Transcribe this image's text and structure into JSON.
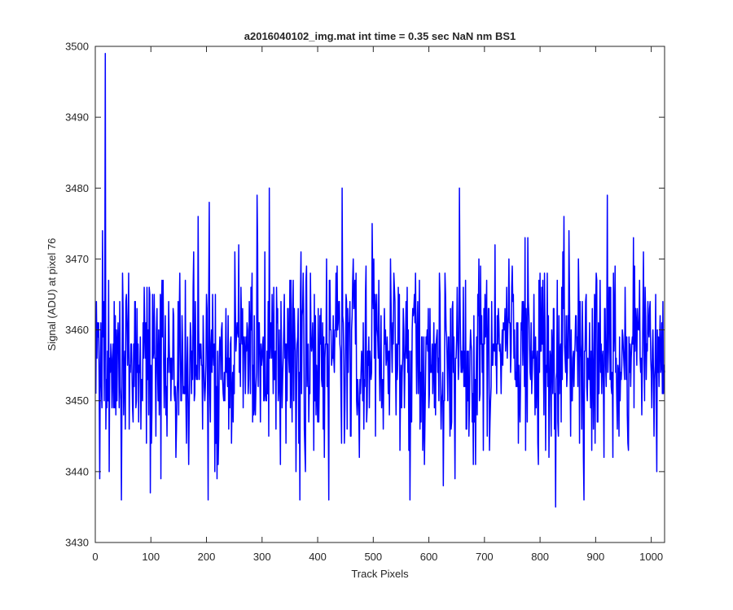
{
  "chart_data": {
    "type": "line",
    "title": "a2016040102_img.mat int time = 0.35 sec  NaN nm BS1",
    "xlabel": "Track Pixels",
    "ylabel": "Signal (ADU) at pixel 76",
    "xlim": [
      0,
      1024
    ],
    "ylim": [
      3430,
      3500
    ],
    "xticks": [
      "0",
      "100",
      "200",
      "300",
      "400",
      "500",
      "600",
      "700",
      "800",
      "900",
      "1000"
    ],
    "yticks": [
      "3430",
      "3440",
      "3450",
      "3460",
      "3470",
      "3480",
      "3490",
      "3500"
    ],
    "grid": false,
    "box": true,
    "series": [
      {
        "color": "#0000ff",
        "x_start": 1,
        "x_step": 1,
        "mean": 3456,
        "std": 7,
        "min": 3435,
        "max": 3499,
        "count": 1024,
        "notable_points": [
          {
            "x": 18,
            "y": 3499
          },
          {
            "x": 47,
            "y": 3436
          },
          {
            "x": 118,
            "y": 3439
          },
          {
            "x": 203,
            "y": 3436
          },
          {
            "x": 205,
            "y": 3478
          },
          {
            "x": 313,
            "y": 3480
          },
          {
            "x": 444,
            "y": 3480
          },
          {
            "x": 566,
            "y": 3436
          },
          {
            "x": 655,
            "y": 3480
          },
          {
            "x": 828,
            "y": 3435
          },
          {
            "x": 921,
            "y": 3479
          }
        ]
      }
    ]
  }
}
